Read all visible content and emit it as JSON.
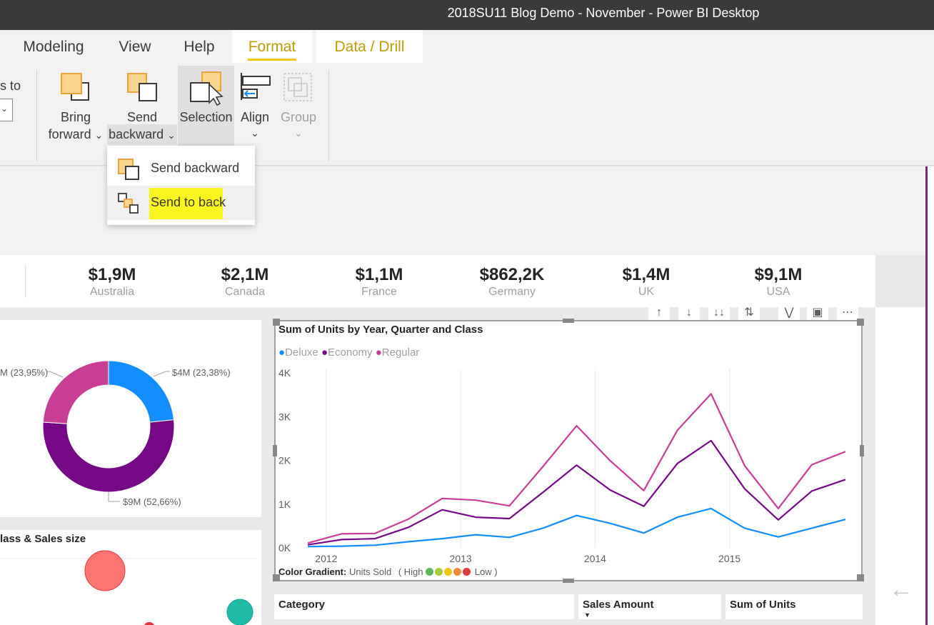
{
  "window": {
    "title": "2018SU11 Blog Demo - November - Power BI Desktop"
  },
  "ribbon_tabs": [
    {
      "label": "Modeling"
    },
    {
      "label": "View"
    },
    {
      "label": "Help"
    },
    {
      "label": "Format"
    },
    {
      "label": "Data / Drill"
    }
  ],
  "ribbon": {
    "cut_label": "s to",
    "bring_forward": {
      "line1": "Bring",
      "line2": "forward"
    },
    "send_backward": {
      "line1": "Send",
      "line2": "backward"
    },
    "selection": {
      "label": "Selection"
    },
    "align": {
      "label": "Align"
    },
    "group": {
      "label": "Group"
    }
  },
  "dropdown": {
    "items": [
      {
        "label": "Send backward"
      },
      {
        "label": "Send to back"
      }
    ]
  },
  "kpis": [
    {
      "value": "$1,9M",
      "label": "Australia"
    },
    {
      "value": "$2,1M",
      "label": "Canada"
    },
    {
      "value": "$1,1M",
      "label": "France"
    },
    {
      "value": "$862,2K",
      "label": "Germany"
    },
    {
      "value": "$1,4M",
      "label": "UK"
    },
    {
      "value": "$9,1M",
      "label": "USA"
    }
  ],
  "donut": {
    "labels": {
      "left": "M (23,95%)",
      "right": "$4M (23,38%)",
      "bottom": "$9M (52,66%)"
    },
    "colors": {
      "deluxe": "#118dff",
      "economy": "#750985",
      "regular": "#c83d95"
    }
  },
  "scatter": {
    "title": "lass & Sales size",
    "colors": {
      "red": "#fd7470",
      "teal": "#1fbcaa"
    }
  },
  "chart_data": {
    "type": "line",
    "title": "Sum of Units by Year, Quarter and Class",
    "xlabel": "",
    "ylabel": "",
    "ylim": [
      0,
      4000
    ],
    "yticks": [
      "0K",
      "1K",
      "2K",
      "3K",
      "4K"
    ],
    "xticks": [
      "2012",
      "2013",
      "2014",
      "2015"
    ],
    "x": [
      "2011 Q4",
      "2012 Q1",
      "2012 Q2",
      "2012 Q3",
      "2012 Q4",
      "2013 Q1",
      "2013 Q2",
      "2013 Q3",
      "2013 Q4",
      "2014 Q1",
      "2014 Q2",
      "2014 Q3",
      "2014 Q4",
      "2015 Q1",
      "2015 Q2",
      "2015 Q3",
      "2015 Q4"
    ],
    "series": [
      {
        "name": "Deluxe",
        "color": "#118dff",
        "values": [
          30,
          40,
          60,
          140,
          210,
          300,
          240,
          450,
          740,
          560,
          340,
          700,
          900,
          450,
          250,
          450,
          650
        ]
      },
      {
        "name": "Economy",
        "color": "#750985",
        "values": [
          70,
          190,
          210,
          470,
          870,
          700,
          670,
          1270,
          1890,
          1320,
          950,
          1930,
          2450,
          1350,
          640,
          1300,
          1560
        ]
      },
      {
        "name": "Regular",
        "color": "#c83d95",
        "values": [
          110,
          320,
          330,
          660,
          1130,
          1090,
          960,
          1860,
          2790,
          1990,
          1310,
          2690,
          3520,
          1880,
          900,
          1900,
          2200
        ]
      }
    ],
    "legend_position": "top-left",
    "grid": true
  },
  "gradient": {
    "label": "Color Gradient:",
    "field": "Units Sold",
    "high": "( High",
    "low": "Low )",
    "colors": [
      "#5cb85c",
      "#a8c93a",
      "#f2c811",
      "#f0883a",
      "#e3373e"
    ]
  },
  "table": {
    "headers": [
      {
        "label": "Category"
      },
      {
        "label": "Sales Amount"
      },
      {
        "label": "Sum of Units"
      }
    ]
  }
}
